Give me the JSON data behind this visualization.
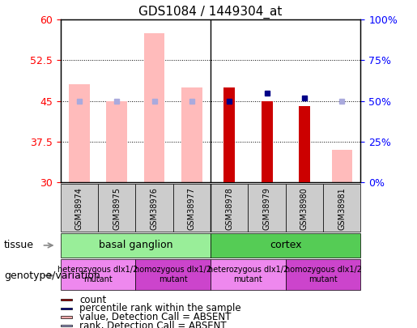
{
  "title": "GDS1084 / 1449304_at",
  "samples": [
    "GSM38974",
    "GSM38975",
    "GSM38976",
    "GSM38977",
    "GSM38978",
    "GSM38979",
    "GSM38980",
    "GSM38981"
  ],
  "left_ylim": [
    30,
    60
  ],
  "right_ylim": [
    0,
    100
  ],
  "left_yticks": [
    30,
    37.5,
    45,
    52.5,
    60
  ],
  "right_yticks": [
    0,
    25,
    50,
    75,
    100
  ],
  "pink_bars": [
    48.0,
    45.0,
    57.5,
    47.5,
    null,
    null,
    null,
    36.0
  ],
  "red_bars": [
    null,
    null,
    null,
    null,
    47.5,
    45.0,
    44.0,
    null
  ],
  "blue_squares_left": [
    null,
    null,
    null,
    null,
    45.0,
    46.5,
    45.5,
    null
  ],
  "light_blue_squares_left": [
    45.0,
    45.0,
    45.0,
    45.0,
    null,
    null,
    null,
    45.0
  ],
  "tissue_groups": [
    {
      "label": "basal ganglion",
      "start": 0,
      "end": 3,
      "color": "#99ee99"
    },
    {
      "label": "cortex",
      "start": 4,
      "end": 7,
      "color": "#55cc55"
    }
  ],
  "genotype_groups": [
    {
      "label": "heterozygous dlx1/2\nmutant",
      "start": 0,
      "end": 1,
      "color": "#ee88ee"
    },
    {
      "label": "homozygous dlx1/2\nmutant",
      "start": 2,
      "end": 3,
      "color": "#cc44cc"
    },
    {
      "label": "heterozygous dlx1/2\nmutant",
      "start": 4,
      "end": 5,
      "color": "#ee88ee"
    },
    {
      "label": "homozygous dlx1/2\nmutant",
      "start": 6,
      "end": 7,
      "color": "#cc44cc"
    }
  ],
  "legend_items": [
    {
      "color": "#aa0000",
      "marker": "square",
      "label": "count"
    },
    {
      "color": "#000099",
      "marker": "square",
      "label": "percentile rank within the sample"
    },
    {
      "color": "#ffaaaa",
      "marker": "square",
      "label": "value, Detection Call = ABSENT"
    },
    {
      "color": "#aaaadd",
      "marker": "square",
      "label": "rank, Detection Call = ABSENT"
    }
  ],
  "sample_box_color": "#cccccc",
  "divider_col": 3.5,
  "bar_width": 0.55,
  "red_bar_width": 0.3
}
